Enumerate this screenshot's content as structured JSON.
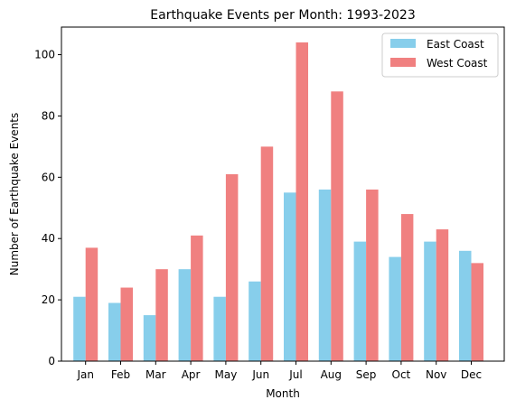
{
  "chart_data": {
    "type": "bar",
    "title": "Earthquake Events per Month: 1993-2023",
    "xlabel": "Month",
    "ylabel": "Number of Earthquake Events",
    "categories": [
      "Jan",
      "Feb",
      "Mar",
      "Apr",
      "May",
      "Jun",
      "Jul",
      "Aug",
      "Sep",
      "Oct",
      "Nov",
      "Dec"
    ],
    "series": [
      {
        "name": "East Coast",
        "color": "#87ceeb",
        "values": [
          21,
          19,
          15,
          30,
          21,
          26,
          55,
          56,
          39,
          34,
          39,
          36
        ]
      },
      {
        "name": "West Coast",
        "color": "#f08080",
        "values": [
          37,
          24,
          30,
          41,
          61,
          70,
          104,
          88,
          56,
          48,
          43,
          32
        ]
      }
    ],
    "ylim": [
      0,
      109
    ],
    "yticks": [
      0,
      20,
      40,
      60,
      80,
      100
    ],
    "grid": false,
    "legend_position": "top-right"
  }
}
